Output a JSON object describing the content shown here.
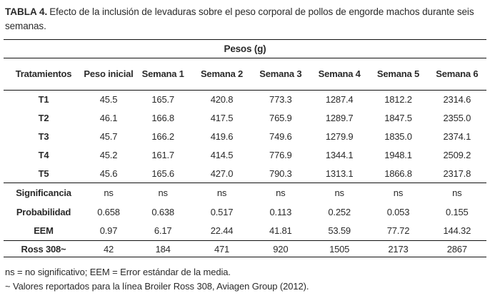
{
  "title": {
    "label": "TABLA 4.",
    "text": "Efecto de la inclusión de levaduras sobre el peso corporal de pollos de engorde machos durante seis semanas."
  },
  "table": {
    "span_header": "Pesos (g)",
    "columns": [
      "Tratamientos",
      "Peso inicial",
      "Semana 1",
      "Semana 2",
      "Semana 3",
      "Semana 4",
      "Semana 5",
      "Semana 6"
    ],
    "treatments": [
      {
        "label": "T1",
        "values": [
          "45.5",
          "165.7",
          "420.8",
          "773.3",
          "1287.4",
          "1812.2",
          "2314.6"
        ]
      },
      {
        "label": "T2",
        "values": [
          "46.1",
          "166.8",
          "417.5",
          "765.9",
          "1289.7",
          "1847.5",
          "2355.0"
        ]
      },
      {
        "label": "T3",
        "values": [
          "45.7",
          "166.2",
          "419.6",
          "749.6",
          "1279.9",
          "1835.0",
          "2374.1"
        ]
      },
      {
        "label": "T4",
        "values": [
          "45.2",
          "161.7",
          "414.5",
          "776.9",
          "1344.1",
          "1948.1",
          "2509.2"
        ]
      },
      {
        "label": "T5",
        "values": [
          "45.6",
          "165.6",
          "427.0",
          "790.3",
          "1313.1",
          "1866.8",
          "2317.8"
        ]
      }
    ],
    "stats": [
      {
        "label": "Significancia",
        "values": [
          "ns",
          "ns",
          "ns",
          "ns",
          "ns",
          "ns",
          "ns"
        ]
      },
      {
        "label": "Probabilidad",
        "values": [
          "0.658",
          "0.638",
          "0.517",
          "0.113",
          "0.252",
          "0.053",
          "0.155"
        ]
      },
      {
        "label": "EEM",
        "values": [
          "0.97",
          "6.17",
          "22.44",
          "41.81",
          "53.59",
          "77.72",
          "144.32"
        ]
      }
    ],
    "reference": {
      "label": "Ross 308~",
      "values": [
        "42",
        "184",
        "471",
        "920",
        "1505",
        "2173",
        "2867"
      ]
    }
  },
  "footnotes": [
    "ns = no significativo; EEM = Error estándar de la media.",
    "~ Valores reportados para la línea Broiler Ross 308, Aviagen Group (2012)."
  ],
  "colors": {
    "text": "#2a2a2a",
    "rule": "#111111",
    "background": "#ffffff"
  }
}
